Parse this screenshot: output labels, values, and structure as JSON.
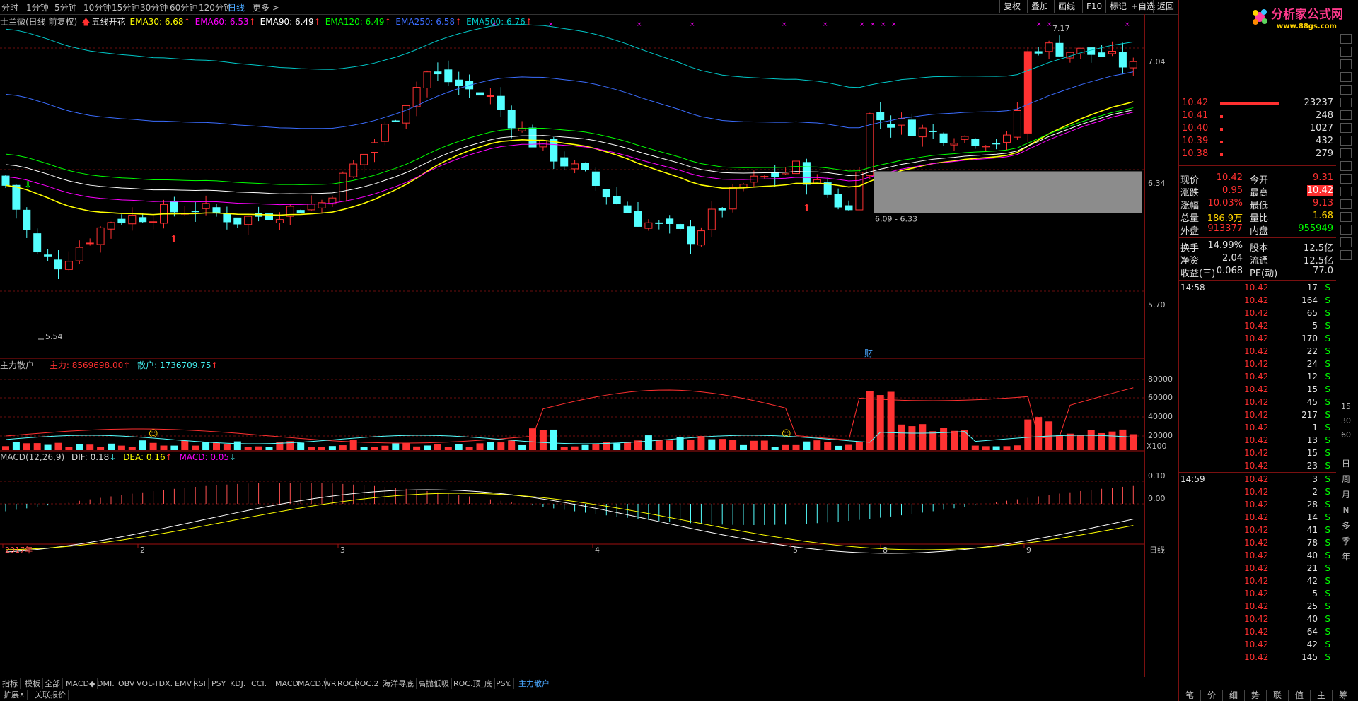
{
  "periods": [
    "分时",
    "1分钟",
    "5分钟",
    "10分钟",
    "15分钟",
    "30分钟",
    "60分钟",
    "120分钟",
    "日线",
    "更多 >"
  ],
  "active_period": "日线",
  "toolbar": [
    "复权",
    "叠加",
    "画线",
    "F10",
    "标记",
    "+自选",
    "返回"
  ],
  "main_panel": {
    "legend": [
      {
        "text": "士兰微(日线 前复权)",
        "color": "#c0c0c0"
      },
      {
        "text": "五线开花",
        "color": "#e0e0e0"
      },
      {
        "text": "EMA30: 6.68",
        "color": "#ffff00"
      },
      {
        "text": "EMA60: 6.53",
        "color": "#ff00ff"
      },
      {
        "text": "EMA90: 6.49",
        "color": "#ffffff"
      },
      {
        "text": "EMA120: 6.49",
        "color": "#00ff00"
      },
      {
        "text": "EMA250: 6.58",
        "color": "#3b6dff"
      },
      {
        "text": "EMA500: 6.76",
        "color": "#00c8c8"
      }
    ],
    "axis_labels": [
      "7.04",
      "6.34",
      "5.70"
    ],
    "annotations": {
      "high": "7.17",
      "low": "5.54",
      "zone": "6.09 - 6.33",
      "finance_badge": "财"
    }
  },
  "sub_panel1": {
    "title": "主力散户",
    "main_force": "主力: 8569698.00",
    "retail": "散户: 1736709.75",
    "axis_labels": [
      "80000",
      "60000",
      "40000",
      "20000"
    ],
    "unit": "X100"
  },
  "sub_panel2": {
    "title": "MACD(12,26,9)",
    "dif": "DIF: 0.18",
    "dea": "DEA: 0.16",
    "macd": "MACD: 0.05",
    "axis_labels": [
      "0.10",
      "0.00"
    ]
  },
  "date_axis": [
    "2017年",
    "2",
    "3",
    "4",
    "5",
    "8",
    "9"
  ],
  "date_axis_right": "日线",
  "indicator_tabs": [
    "指标",
    "模板",
    "全部",
    "MACD◆",
    "DMI.",
    "OBV",
    "VOL-TDX.",
    "EMV",
    "RSI",
    "PSY",
    "KDJ.",
    "CCI.",
    "MACD",
    "MACD.",
    "WR",
    "ROC",
    "ROC.2",
    "海洋寻底",
    "高抛低吸",
    "ROC.顶_底",
    "PSY.",
    "主力散户"
  ],
  "active_indicator": "主力散户",
  "bottom_tabs": [
    "扩展∧",
    "关联报价"
  ],
  "right_panel": {
    "brand": "分析家公式网",
    "brand_url": "www.88gs.com",
    "order_book": [
      {
        "price": "10.42",
        "vol": "23237"
      },
      {
        "price": "10.41",
        "vol": "248"
      },
      {
        "price": "10.40",
        "vol": "1027"
      },
      {
        "price": "10.39",
        "vol": "432"
      },
      {
        "price": "10.38",
        "vol": "279"
      }
    ],
    "quote": [
      {
        "l1": "现价",
        "v1": "10.42",
        "l2": "今开",
        "v2": "9.31"
      },
      {
        "l1": "涨跌",
        "v1": "0.95",
        "l2": "最高",
        "v2": "10.42"
      },
      {
        "l1": "涨幅",
        "v1": "10.03%",
        "l2": "最低",
        "v2": "9.13"
      },
      {
        "l1": "总量",
        "v1": "186.9万",
        "l2": "量比",
        "v2": "1.68"
      },
      {
        "l1": "外盘",
        "v1": "913377",
        "l2": "内盘",
        "v2": "955949"
      }
    ],
    "stats": [
      {
        "l1": "换手",
        "v1": "14.99%",
        "l2": "股本",
        "v2": "12.5亿"
      },
      {
        "l1": "净资",
        "v1": "2.04",
        "l2": "流通",
        "v2": "12.5亿"
      },
      {
        "l1": "收益(三)",
        "v1": "0.068",
        "l2": "PE(动)",
        "v2": "77.0"
      }
    ],
    "ticks_1": {
      "time": "14:58",
      "rows": [
        [
          "10.42",
          "17",
          "S"
        ],
        [
          "10.42",
          "164",
          "S"
        ],
        [
          "10.42",
          "65",
          "S"
        ],
        [
          "10.42",
          "5",
          "S"
        ],
        [
          "10.42",
          "170",
          "S"
        ],
        [
          "10.42",
          "22",
          "S"
        ],
        [
          "10.42",
          "24",
          "S"
        ],
        [
          "10.42",
          "12",
          "S"
        ],
        [
          "10.42",
          "15",
          "S"
        ],
        [
          "10.42",
          "45",
          "S"
        ],
        [
          "10.42",
          "217",
          "S"
        ],
        [
          "10.42",
          "1",
          "S"
        ],
        [
          "10.42",
          "13",
          "S"
        ],
        [
          "10.42",
          "15",
          "S"
        ],
        [
          "10.42",
          "23",
          "S"
        ]
      ]
    },
    "ticks_2": {
      "time": "14:59",
      "rows": [
        [
          "10.42",
          "3",
          "S"
        ],
        [
          "10.42",
          "2",
          "S"
        ],
        [
          "10.42",
          "28",
          "S"
        ],
        [
          "10.42",
          "14",
          "S"
        ],
        [
          "10.42",
          "41",
          "S"
        ],
        [
          "10.42",
          "78",
          "S"
        ],
        [
          "10.42",
          "40",
          "S"
        ],
        [
          "10.42",
          "21",
          "S"
        ],
        [
          "10.42",
          "42",
          "S"
        ],
        [
          "10.42",
          "5",
          "S"
        ],
        [
          "10.42",
          "25",
          "S"
        ],
        [
          "10.42",
          "40",
          "S"
        ],
        [
          "10.42",
          "64",
          "S"
        ],
        [
          "10.42",
          "42",
          "S"
        ],
        [
          "10.42",
          "145",
          "S"
        ]
      ]
    },
    "side_icons": [
      "日",
      "周",
      "月",
      "N",
      "多",
      "季",
      "年"
    ],
    "side_numbers": [
      "15",
      "30",
      "60"
    ],
    "side_tabs": [
      "笔",
      "价",
      "细",
      "势",
      "联",
      "值",
      "主",
      "筹"
    ]
  }
}
